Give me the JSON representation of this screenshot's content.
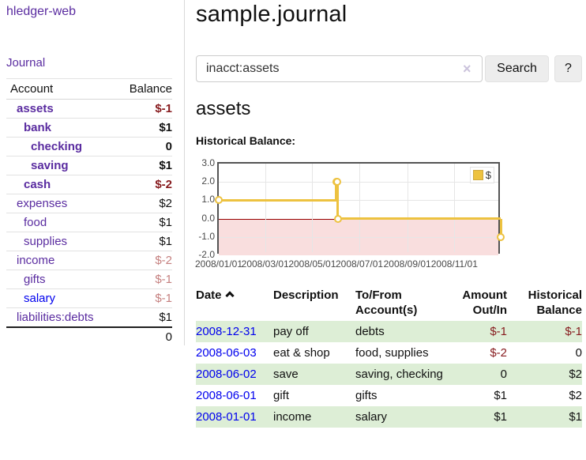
{
  "colors": {
    "purple": "#5a2ca0",
    "blue": "#0000ee",
    "neg_strong": "#871b1e",
    "neg_soft": "#c5807f",
    "row_green": "#ddeed6",
    "gold": "#edc240",
    "pink": "#f9dede",
    "zero_line": "#990000"
  },
  "sidebar": {
    "brand": "hledger-web",
    "journal_link": "Journal",
    "accounts": {
      "header_account": "Account",
      "header_balance": "Balance",
      "rows": [
        {
          "label": "assets",
          "indent": 1,
          "bold": true,
          "balance": "$-1",
          "balance_class": "neg-strong",
          "link_class": ""
        },
        {
          "label": "bank",
          "indent": 2,
          "bold": true,
          "balance": "$1",
          "balance_class": "b",
          "link_class": ""
        },
        {
          "label": "checking",
          "indent": 3,
          "bold": true,
          "balance": "0",
          "balance_class": "b",
          "link_class": ""
        },
        {
          "label": "saving",
          "indent": 3,
          "bold": true,
          "balance": "$1",
          "balance_class": "b",
          "link_class": ""
        },
        {
          "label": "cash",
          "indent": 2,
          "bold": true,
          "balance": "$-2",
          "balance_class": "neg-strong",
          "link_class": ""
        },
        {
          "label": "expenses",
          "indent": 1,
          "bold": false,
          "balance": "$2",
          "balance_class": "",
          "link_class": ""
        },
        {
          "label": "food",
          "indent": 2,
          "bold": false,
          "balance": "$1",
          "balance_class": "",
          "link_class": ""
        },
        {
          "label": "supplies",
          "indent": 2,
          "bold": false,
          "balance": "$1",
          "balance_class": "",
          "link_class": ""
        },
        {
          "label": "income",
          "indent": 1,
          "bold": false,
          "balance": "$-2",
          "balance_class": "neg-soft",
          "link_class": ""
        },
        {
          "label": "gifts",
          "indent": 2,
          "bold": false,
          "balance": "$-1",
          "balance_class": "neg-soft",
          "link_class": ""
        },
        {
          "label": "salary",
          "indent": 2,
          "bold": false,
          "balance": "$-1",
          "balance_class": "neg-soft",
          "link_class": "unvisited"
        },
        {
          "label": "liabilities:debts",
          "indent": 1,
          "bold": false,
          "balance": "$1",
          "balance_class": "",
          "link_class": ""
        }
      ],
      "total": "0"
    }
  },
  "main": {
    "title": "sample.journal",
    "search": {
      "value": "inacct:assets",
      "clear_icon": "×",
      "button_label": "Search",
      "help_label": "?"
    },
    "account_heading": "assets",
    "chart_label": "Historical Balance:"
  },
  "chart_data": {
    "type": "line",
    "step": true,
    "title": "Historical Balance:",
    "legend": [
      {
        "name": "$",
        "color": "#edc240"
      }
    ],
    "legend_position": "top-right",
    "grid": true,
    "x_range": [
      "2008-01-01",
      "2009-01-01"
    ],
    "ylim": [
      -2,
      3
    ],
    "y_ticks": [
      {
        "label": "3.0",
        "value": 3
      },
      {
        "label": "2.0",
        "value": 2
      },
      {
        "label": "1.0",
        "value": 1
      },
      {
        "label": "0.0",
        "value": 0
      },
      {
        "label": "-1.0",
        "value": -1
      },
      {
        "label": "-2.0",
        "value": -2
      }
    ],
    "x_ticks": [
      {
        "label": "2008/01/01",
        "date": "2008-01-01"
      },
      {
        "label": "2008/03/01",
        "date": "2008-03-01"
      },
      {
        "label": "2008/05/01",
        "date": "2008-05-01"
      },
      {
        "label": "2008/07/01",
        "date": "2008-07-01"
      },
      {
        "label": "2008/09/01",
        "date": "2008-09-01"
      },
      {
        "label": "2008/11/01",
        "date": "2008-11-01"
      }
    ],
    "series": [
      {
        "name": "$",
        "points": [
          [
            "2008-01-01",
            1
          ],
          [
            "2008-06-01",
            2
          ],
          [
            "2008-06-02",
            2
          ],
          [
            "2008-06-03",
            0
          ],
          [
            "2008-12-31",
            -1
          ]
        ]
      }
    ],
    "negative_region_below": 0
  },
  "register": {
    "headers": {
      "date": "Date",
      "description": "Description",
      "accounts": "To/From Account(s)",
      "amount": "Amount Out/In",
      "balance": "Historical Balance"
    },
    "sort": "date-ascending",
    "rows": [
      {
        "date": "2008-12-31",
        "description": "pay off",
        "accounts": "debts",
        "amount": "$-1",
        "amount_neg": true,
        "balance": "$-1",
        "balance_neg": true,
        "shade": true
      },
      {
        "date": "2008-06-03",
        "description": "eat & shop",
        "accounts": "food, supplies",
        "amount": "$-2",
        "amount_neg": true,
        "balance": "0",
        "balance_neg": false,
        "shade": false
      },
      {
        "date": "2008-06-02",
        "description": "save",
        "accounts": "saving, checking",
        "amount": "0",
        "amount_neg": false,
        "balance": "$2",
        "balance_neg": false,
        "shade": true
      },
      {
        "date": "2008-06-01",
        "description": "gift",
        "accounts": "gifts",
        "amount": "$1",
        "amount_neg": false,
        "balance": "$2",
        "balance_neg": false,
        "shade": false
      },
      {
        "date": "2008-01-01",
        "description": "income",
        "accounts": "salary",
        "amount": "$1",
        "amount_neg": false,
        "balance": "$1",
        "balance_neg": false,
        "shade": true
      }
    ]
  }
}
